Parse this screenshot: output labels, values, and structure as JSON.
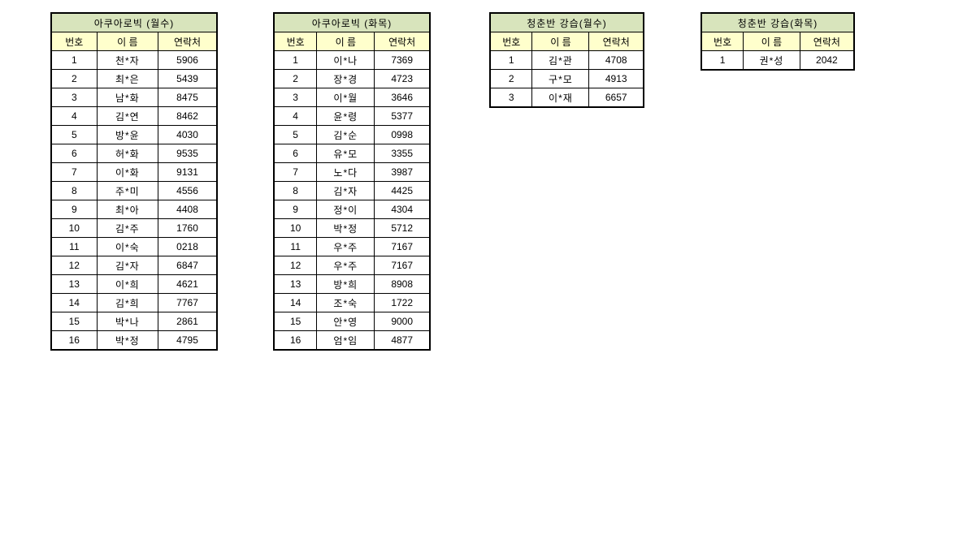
{
  "colors": {
    "page_bg": "#ffffff",
    "title_bg": "#d8e4bc",
    "header_bg": "#ffffcc",
    "border": "#000000",
    "text": "#000000"
  },
  "tables": [
    {
      "title": "아쿠아로빅 (월수)",
      "headers": [
        "번호",
        "이 름",
        "연락처"
      ],
      "rows": [
        [
          "1",
          "천*자",
          "5906"
        ],
        [
          "2",
          "최*은",
          "5439"
        ],
        [
          "3",
          "남*화",
          "8475"
        ],
        [
          "4",
          "김*연",
          "8462"
        ],
        [
          "5",
          "방*윤",
          "4030"
        ],
        [
          "6",
          "허*화",
          "9535"
        ],
        [
          "7",
          "이*화",
          "9131"
        ],
        [
          "8",
          "주*미",
          "4556"
        ],
        [
          "9",
          "최*아",
          "4408"
        ],
        [
          "10",
          "김*주",
          "1760"
        ],
        [
          "11",
          "이*숙",
          "0218"
        ],
        [
          "12",
          "김*자",
          "6847"
        ],
        [
          "13",
          "이*희",
          "4621"
        ],
        [
          "14",
          "김*희",
          "7767"
        ],
        [
          "15",
          "박*나",
          "2861"
        ],
        [
          "16",
          "박*정",
          "4795"
        ]
      ]
    },
    {
      "title": "아쿠아로빅 (화목)",
      "headers": [
        "번호",
        "이 름",
        "연락처"
      ],
      "rows": [
        [
          "1",
          "이*나",
          "7369"
        ],
        [
          "2",
          "장*경",
          "4723"
        ],
        [
          "3",
          "이*월",
          "3646"
        ],
        [
          "4",
          "윤*령",
          "5377"
        ],
        [
          "5",
          "김*순",
          "0998"
        ],
        [
          "6",
          "유*모",
          "3355"
        ],
        [
          "7",
          "노*다",
          "3987"
        ],
        [
          "8",
          "김*자",
          "4425"
        ],
        [
          "9",
          "정*이",
          "4304"
        ],
        [
          "10",
          "박*정",
          "5712"
        ],
        [
          "11",
          "우*주",
          "7167"
        ],
        [
          "12",
          "우*주",
          "7167"
        ],
        [
          "13",
          "방*희",
          "8908"
        ],
        [
          "14",
          "조*숙",
          "1722"
        ],
        [
          "15",
          "안*영",
          "9000"
        ],
        [
          "16",
          "엄*임",
          "4877"
        ]
      ]
    },
    {
      "title": "청춘반 강습(월수)",
      "headers": [
        "번호",
        "이 름",
        "연락처"
      ],
      "rows": [
        [
          "1",
          "김*관",
          "4708"
        ],
        [
          "2",
          "구*모",
          "4913"
        ],
        [
          "3",
          "이*재",
          "6657"
        ]
      ]
    },
    {
      "title": "청춘반 강습(화목)",
      "headers": [
        "번호",
        "이 름",
        "연락처"
      ],
      "rows": [
        [
          "1",
          "권*성",
          "2042"
        ]
      ]
    }
  ]
}
